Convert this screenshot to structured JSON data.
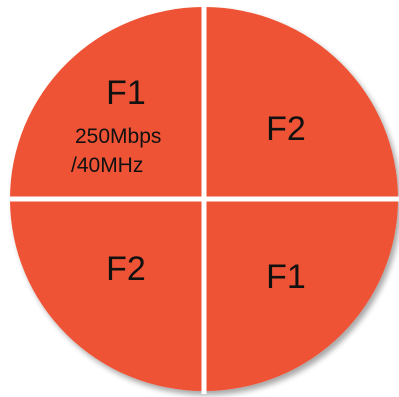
{
  "colors": {
    "fill": "#EE5335",
    "divider": "#ffffff",
    "text": "#111111"
  },
  "quadrants": {
    "top_left": {
      "label": "F1",
      "detail_line1": "250Mbps",
      "detail_line2": "/40MHz"
    },
    "top_right": {
      "label": "F2"
    },
    "bottom_left": {
      "label": "F2"
    },
    "bottom_right": {
      "label": "F1"
    }
  }
}
